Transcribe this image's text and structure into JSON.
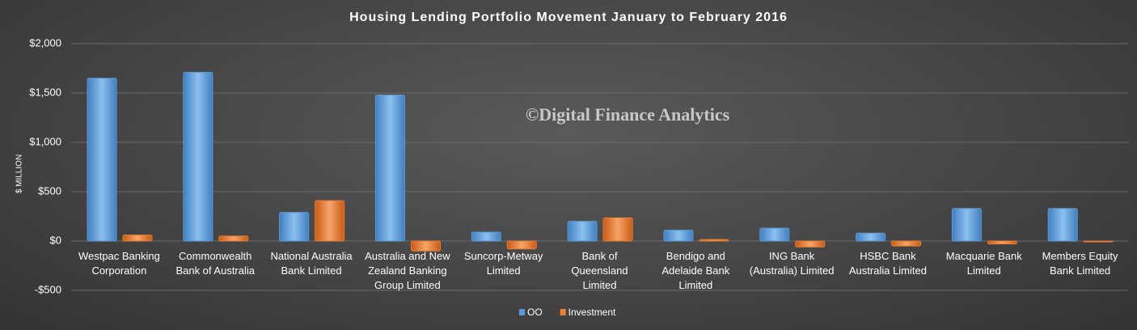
{
  "chart_data": {
    "type": "bar",
    "title": "Housing Lending Portfolio Movement January to February 2016",
    "annotation": "©Digital Finance Analytics",
    "y_label": "$ MILLION",
    "categories": [
      "Westpac Banking Corporation",
      "Commonwealth Bank of Australia",
      "National Australia Bank Limited",
      "Australia and New Zealand Banking Group Limited",
      "Suncorp-Metway Limited",
      "Bank of Queensland Limited",
      "Bendigo and Adelaide Bank Limited",
      "ING Bank (Australia) Limited",
      "HSBC Bank Australia Limited",
      "Macquarie Bank Limited",
      "Members Equity Bank Limited"
    ],
    "series": [
      {
        "name": "OO",
        "color": "#5b9bd5",
        "values": [
          1650,
          1710,
          290,
          1480,
          90,
          200,
          110,
          130,
          80,
          330,
          330
        ]
      },
      {
        "name": "Investment",
        "color": "#ed7d31",
        "values": [
          60,
          50,
          410,
          -100,
          -80,
          235,
          15,
          -60,
          -50,
          -30,
          -5
        ]
      }
    ],
    "ylim": [
      -500,
      2000
    ],
    "yticks": [
      {
        "value": -500,
        "label": "-$500"
      },
      {
        "value": 0,
        "label": "$0"
      },
      {
        "value": 500,
        "label": "$500"
      },
      {
        "value": 1000,
        "label": "$1,000"
      },
      {
        "value": 1500,
        "label": "$1,500"
      },
      {
        "value": 2000,
        "label": "$2,000"
      }
    ],
    "grid": true,
    "legend": "bottom"
  }
}
